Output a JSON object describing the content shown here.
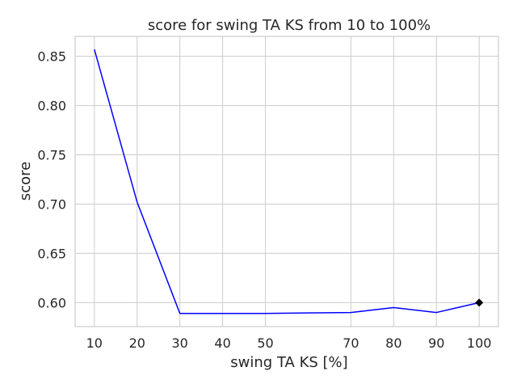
{
  "chart_data": {
    "type": "line",
    "title": "score for swing TA KS from 10 to 100%",
    "xlabel": "swing TA KS [%]",
    "ylabel": "score",
    "x": [
      10,
      20,
      30,
      40,
      50,
      70,
      80,
      90,
      100
    ],
    "series": [
      {
        "values": [
          0.857,
          0.702,
          0.589,
          0.589,
          0.589,
          0.59,
          0.595,
          0.59,
          0.6
        ],
        "color": "#0000ff"
      }
    ],
    "highlight_point": {
      "x": 100,
      "y": 0.6,
      "color": "#000000",
      "marker": "diamond"
    },
    "xticks": [
      10,
      20,
      30,
      40,
      50,
      70,
      80,
      90,
      100
    ],
    "yticks": [
      0.6,
      0.65,
      0.7,
      0.75,
      0.8,
      0.85
    ],
    "ytick_labels": [
      "0.60",
      "0.65",
      "0.70",
      "0.75",
      "0.80",
      "0.85"
    ],
    "xlim": [
      5.5,
      104.5
    ],
    "ylim": [
      0.5757,
      0.8702
    ],
    "grid": true,
    "style": "whitegrid"
  }
}
